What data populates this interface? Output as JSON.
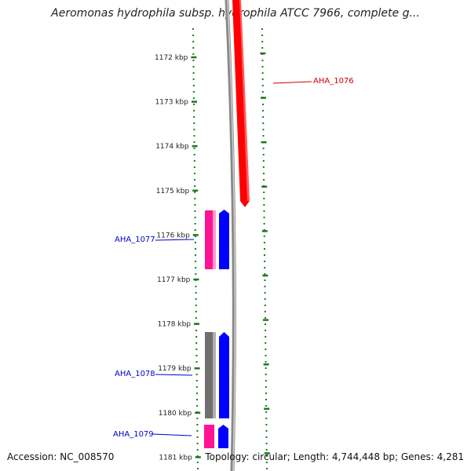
{
  "title": "Aeromonas hydrophila subsp. hydrophila ATCC 7966, complete g...",
  "footer": {
    "accession": "Accession: NC_008570",
    "summary": "Topology: circular; Length: 4,744,448 bp; Genes: 4,281"
  },
  "colors": {
    "ruler": "#1a7a1a",
    "backbone": "#888888",
    "forward_gene": "#ff0000",
    "reverse_label": "#0000cc",
    "forward_label": "#cc0000",
    "blue_feature": "#0000ff",
    "pink_feature": "#ff1493",
    "gray_feature": "#707070"
  },
  "ticks": [
    {
      "kbp": 1172,
      "label": "1172 kbp"
    },
    {
      "kbp": 1173,
      "label": "1173 kbp"
    },
    {
      "kbp": 1174,
      "label": "1174 kbp"
    },
    {
      "kbp": 1175,
      "label": "1175 kbp"
    },
    {
      "kbp": 1176,
      "label": "1176 kbp"
    },
    {
      "kbp": 1177,
      "label": "1177 kbp"
    },
    {
      "kbp": 1178,
      "label": "1178 kbp"
    },
    {
      "kbp": 1179,
      "label": "1179 kbp"
    },
    {
      "kbp": 1180,
      "label": "1180 kbp"
    },
    {
      "kbp": 1181,
      "label": "1181 kbp"
    }
  ],
  "genes": [
    {
      "name": "AHA_1076",
      "strand": "forward"
    },
    {
      "name": "AHA_1077",
      "strand": "reverse"
    },
    {
      "name": "AHA_1078",
      "strand": "reverse"
    },
    {
      "name": "AHA_1079",
      "strand": "reverse"
    }
  ]
}
